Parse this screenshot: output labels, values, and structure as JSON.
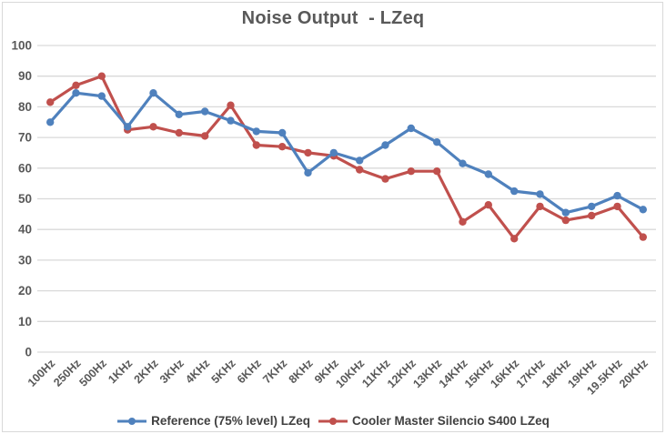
{
  "chart_data": {
    "type": "line",
    "title": "Noise Output  - LZeq",
    "categories": [
      "100Hz",
      "250Hz",
      "500Hz",
      "1KHz",
      "2KHz",
      "3KHz",
      "4KHz",
      "5KHz",
      "6KHz",
      "7KHz",
      "8KHz",
      "9KHz",
      "10KHz",
      "11KHz",
      "12KHz",
      "13KHz",
      "14KHz",
      "15KHz",
      "16KHz",
      "17KHz",
      "18KHz",
      "19KHz",
      "19.5KHz",
      "20KHz"
    ],
    "series": [
      {
        "name": "Reference (75% level) LZeq",
        "color": "#4F81BD",
        "values": [
          75,
          84.5,
          83.5,
          73.5,
          84.5,
          77.5,
          78.5,
          75.5,
          72,
          71.5,
          58.5,
          65,
          62.5,
          67.5,
          73,
          68.5,
          61.5,
          58,
          52.5,
          51.5,
          45.5,
          47.5,
          51,
          46.5
        ]
      },
      {
        "name": "Cooler Master Silencio S400 LZeq",
        "color": "#C0504D",
        "values": [
          81.5,
          87,
          90,
          72.5,
          73.5,
          71.5,
          70.5,
          80.5,
          67.5,
          67,
          65,
          64,
          59.5,
          56.5,
          59,
          59,
          42.5,
          48,
          37,
          47.5,
          43,
          44.5,
          47.5,
          37.5
        ]
      }
    ],
    "ylim": [
      0,
      100
    ],
    "yticks": [
      0,
      10,
      20,
      30,
      40,
      50,
      60,
      70,
      80,
      90,
      100
    ],
    "xlabel": "",
    "ylabel": "",
    "grid": true,
    "legend_position": "bottom",
    "colors": {
      "gridline": "#D9D9D9",
      "axis_labels": "#595959",
      "title": "#595959",
      "legend_text": "#404040",
      "background": "#FFFFFF",
      "border": "#D9D9D9"
    }
  }
}
